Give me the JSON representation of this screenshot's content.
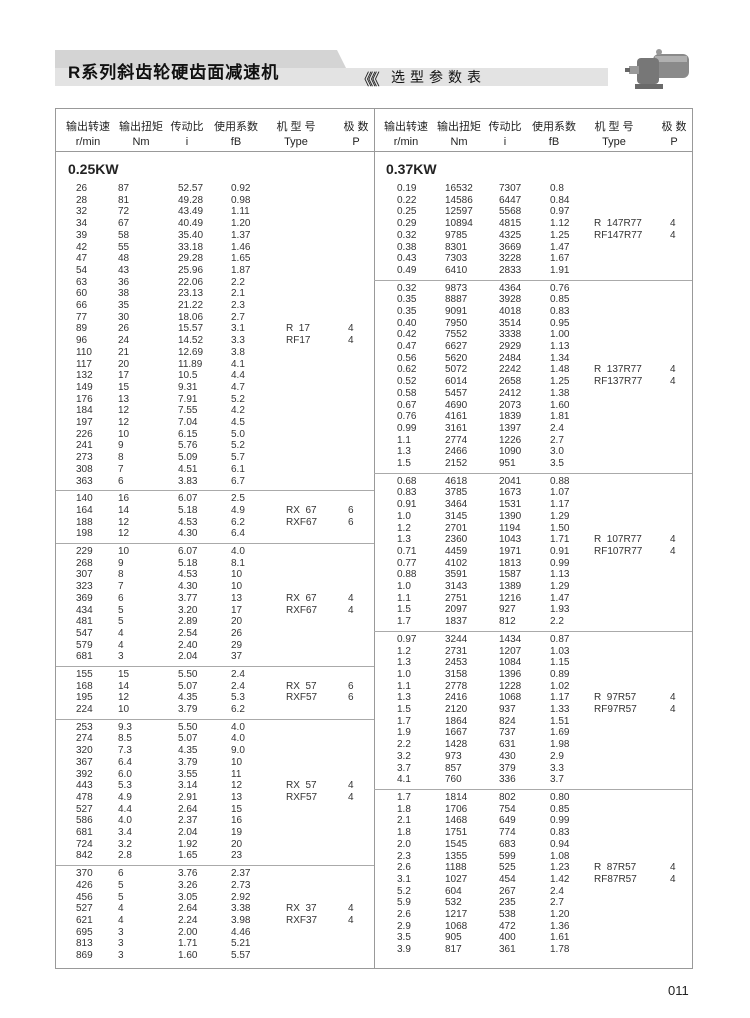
{
  "header": {
    "title": "R系列斜齿轮硬齿面减速机",
    "chevrons": "《《《",
    "subtitle": "选型参数表"
  },
  "columns": [
    {
      "zh": "输出转速",
      "en": "r/min"
    },
    {
      "zh": "输出扭矩",
      "en": "Nm"
    },
    {
      "zh": "传动比",
      "en": "i"
    },
    {
      "zh": "使用系数",
      "en": "fB"
    },
    {
      "zh": "机 型 号",
      "en": "Type"
    },
    {
      "zh": "极  数",
      "en": "P"
    }
  ],
  "sections": [
    {
      "power": "0.25KW",
      "groups": [
        {
          "types": [
            "R  17",
            "RF17"
          ],
          "poles": [
            "4",
            "4"
          ],
          "rows": [
            [
              "26",
              "87",
              "52.57",
              "0.92"
            ],
            [
              "28",
              "81",
              "49.28",
              "0.98"
            ],
            [
              "32",
              "72",
              "43.49",
              "1.11"
            ],
            [
              "34",
              "67",
              "40.49",
              "1.20"
            ],
            [
              "39",
              "58",
              "35.40",
              "1.37"
            ],
            [
              "42",
              "55",
              "33.18",
              "1.46"
            ],
            [
              "47",
              "48",
              "29.28",
              "1.65"
            ],
            [
              "54",
              "43",
              "25.96",
              "1.87"
            ],
            [
              "63",
              "36",
              "22.06",
              "2.2"
            ],
            [
              "60",
              "38",
              "23.13",
              "2.1"
            ],
            [
              "66",
              "35",
              "21.22",
              "2.3"
            ],
            [
              "77",
              "30",
              "18.06",
              "2.7"
            ],
            [
              "89",
              "26",
              "15.57",
              "3.1"
            ],
            [
              "96",
              "24",
              "14.52",
              "3.3"
            ],
            [
              "110",
              "21",
              "12.69",
              "3.8"
            ],
            [
              "117",
              "20",
              "11.89",
              "4.1"
            ],
            [
              "132",
              "17",
              "10.5",
              "4.4"
            ],
            [
              "149",
              "15",
              "9.31",
              "4.7"
            ],
            [
              "176",
              "13",
              "7.91",
              "5.2"
            ],
            [
              "184",
              "12",
              "7.55",
              "4.2"
            ],
            [
              "197",
              "12",
              "7.04",
              "4.5"
            ],
            [
              "226",
              "10",
              "6.15",
              "5.0"
            ],
            [
              "241",
              "9",
              "5.76",
              "5.2"
            ],
            [
              "273",
              "8",
              "5.09",
              "5.7"
            ],
            [
              "308",
              "7",
              "4.51",
              "6.1"
            ],
            [
              "363",
              "6",
              "3.83",
              "6.7"
            ]
          ]
        },
        {
          "types": [
            "RX  67",
            "RXF67"
          ],
          "poles": [
            "6",
            "6"
          ],
          "rows": [
            [
              "140",
              "16",
              "6.07",
              "2.5"
            ],
            [
              "164",
              "14",
              "5.18",
              "4.9"
            ],
            [
              "188",
              "12",
              "4.53",
              "6.2"
            ],
            [
              "198",
              "12",
              "4.30",
              "6.4"
            ]
          ]
        },
        {
          "types": [
            "RX  67",
            "RXF67"
          ],
          "poles": [
            "4",
            "4"
          ],
          "rows": [
            [
              "229",
              "10",
              "6.07",
              "4.0"
            ],
            [
              "268",
              "9",
              "5.18",
              "8.1"
            ],
            [
              "307",
              "8",
              "4.53",
              "10"
            ],
            [
              "323",
              "7",
              "4.30",
              "10"
            ],
            [
              "369",
              "6",
              "3.77",
              "13"
            ],
            [
              "434",
              "5",
              "3.20",
              "17"
            ],
            [
              "481",
              "5",
              "2.89",
              "20"
            ],
            [
              "547",
              "4",
              "2.54",
              "26"
            ],
            [
              "579",
              "4",
              "2.40",
              "29"
            ],
            [
              "681",
              "3",
              "2.04",
              "37"
            ]
          ]
        },
        {
          "types": [
            "RX  57",
            "RXF57"
          ],
          "poles": [
            "6",
            "6"
          ],
          "rows": [
            [
              "155",
              "15",
              "5.50",
              "2.4"
            ],
            [
              "168",
              "14",
              "5.07",
              "2.4"
            ],
            [
              "195",
              "12",
              "4.35",
              "5.3"
            ],
            [
              "224",
              "10",
              "3.79",
              "6.2"
            ]
          ]
        },
        {
          "types": [
            "RX  57",
            "RXF57"
          ],
          "poles": [
            "4",
            "4"
          ],
          "rows": [
            [
              "253",
              "9.3",
              "5.50",
              "4.0"
            ],
            [
              "274",
              "8.5",
              "5.07",
              "4.0"
            ],
            [
              "320",
              "7.3",
              "4.35",
              "9.0"
            ],
            [
              "367",
              "6.4",
              "3.79",
              "10"
            ],
            [
              "392",
              "6.0",
              "3.55",
              "11"
            ],
            [
              "443",
              "5.3",
              "3.14",
              "12"
            ],
            [
              "478",
              "4.9",
              "2.91",
              "13"
            ],
            [
              "527",
              "4.4",
              "2.64",
              "15"
            ],
            [
              "586",
              "4.0",
              "2.37",
              "16"
            ],
            [
              "681",
              "3.4",
              "2.04",
              "19"
            ],
            [
              "724",
              "3.2",
              "1.92",
              "20"
            ],
            [
              "842",
              "2.8",
              "1.65",
              "23"
            ]
          ]
        },
        {
          "types": [
            "RX  37",
            "RXF37"
          ],
          "poles": [
            "4",
            "4"
          ],
          "rows": [
            [
              "370",
              "6",
              "3.76",
              "2.37"
            ],
            [
              "426",
              "5",
              "3.26",
              "2.73"
            ],
            [
              "456",
              "5",
              "3.05",
              "2.92"
            ],
            [
              "527",
              "4",
              "2.64",
              "3.38"
            ],
            [
              "621",
              "4",
              "2.24",
              "3.98"
            ],
            [
              "695",
              "3",
              "2.00",
              "4.46"
            ],
            [
              "813",
              "3",
              "1.71",
              "5.21"
            ],
            [
              "869",
              "3",
              "1.60",
              "5.57"
            ]
          ]
        }
      ]
    },
    {
      "power": "0.37KW",
      "groups": [
        {
          "types": [
            "R  147R77",
            "RF147R77"
          ],
          "poles": [
            "4",
            "4"
          ],
          "rows": [
            [
              "0.19",
              "16532",
              "7307",
              "0.8"
            ],
            [
              "0.22",
              "14586",
              "6447",
              "0.84"
            ],
            [
              "0.25",
              "12597",
              "5568",
              "0.97"
            ],
            [
              "0.29",
              "10894",
              "4815",
              "1.12"
            ],
            [
              "0.32",
              "9785",
              "4325",
              "1.25"
            ],
            [
              "0.38",
              "8301",
              "3669",
              "1.47"
            ],
            [
              "0.43",
              "7303",
              "3228",
              "1.67"
            ],
            [
              "0.49",
              "6410",
              "2833",
              "1.91"
            ]
          ]
        },
        {
          "types": [
            "R  137R77",
            "RF137R77"
          ],
          "poles": [
            "4",
            "4"
          ],
          "rows": [
            [
              "0.32",
              "9873",
              "4364",
              "0.76"
            ],
            [
              "0.35",
              "8887",
              "3928",
              "0.85"
            ],
            [
              "0.35",
              "9091",
              "4018",
              "0.83"
            ],
            [
              "0.40",
              "7950",
              "3514",
              "0.95"
            ],
            [
              "0.42",
              "7552",
              "3338",
              "1.00"
            ],
            [
              "0.47",
              "6627",
              "2929",
              "1.13"
            ],
            [
              "0.56",
              "5620",
              "2484",
              "1.34"
            ],
            [
              "0.62",
              "5072",
              "2242",
              "1.48"
            ],
            [
              "0.52",
              "6014",
              "2658",
              "1.25"
            ],
            [
              "0.58",
              "5457",
              "2412",
              "1.38"
            ],
            [
              "0.67",
              "4690",
              "2073",
              "1.60"
            ],
            [
              "0.76",
              "4161",
              "1839",
              "1.81"
            ],
            [
              "0.99",
              "3161",
              "1397",
              "2.4"
            ],
            [
              "1.1",
              "2774",
              "1226",
              "2.7"
            ],
            [
              "1.3",
              "2466",
              "1090",
              "3.0"
            ],
            [
              "1.5",
              "2152",
              "951",
              "3.5"
            ]
          ]
        },
        {
          "types": [
            "R  107R77",
            "RF107R77"
          ],
          "poles": [
            "4",
            "4"
          ],
          "rows": [
            [
              "0.68",
              "4618",
              "2041",
              "0.88"
            ],
            [
              "0.83",
              "3785",
              "1673",
              "1.07"
            ],
            [
              "0.91",
              "3464",
              "1531",
              "1.17"
            ],
            [
              "1.0",
              "3145",
              "1390",
              "1.29"
            ],
            [
              "1.2",
              "2701",
              "1194",
              "1.50"
            ],
            [
              "1.3",
              "2360",
              "1043",
              "1.71"
            ],
            [
              "0.71",
              "4459",
              "1971",
              "0.91"
            ],
            [
              "0.77",
              "4102",
              "1813",
              "0.99"
            ],
            [
              "0.88",
              "3591",
              "1587",
              "1.13"
            ],
            [
              "1.0",
              "3143",
              "1389",
              "1.29"
            ],
            [
              "1.1",
              "2751",
              "1216",
              "1.47"
            ],
            [
              "1.5",
              "2097",
              "927",
              "1.93"
            ],
            [
              "1.7",
              "1837",
              "812",
              "2.2"
            ]
          ]
        },
        {
          "types": [
            "R  97R57",
            "RF97R57"
          ],
          "poles": [
            "4",
            "4"
          ],
          "rows": [
            [
              "0.97",
              "3244",
              "1434",
              "0.87"
            ],
            [
              "1.2",
              "2731",
              "1207",
              "1.03"
            ],
            [
              "1.3",
              "2453",
              "1084",
              "1.15"
            ],
            [
              "1.0",
              "3158",
              "1396",
              "0.89"
            ],
            [
              "1.1",
              "2778",
              "1228",
              "1.02"
            ],
            [
              "1.3",
              "2416",
              "1068",
              "1.17"
            ],
            [
              "1.5",
              "2120",
              "937",
              "1.33"
            ],
            [
              "1.7",
              "1864",
              "824",
              "1.51"
            ],
            [
              "1.9",
              "1667",
              "737",
              "1.69"
            ],
            [
              "2.2",
              "1428",
              "631",
              "1.98"
            ],
            [
              "3.2",
              "973",
              "430",
              "2.9"
            ],
            [
              "3.7",
              "857",
              "379",
              "3.3"
            ],
            [
              "4.1",
              "760",
              "336",
              "3.7"
            ]
          ]
        },
        {
          "types": [
            "R  87R57",
            "RF87R57"
          ],
          "poles": [
            "4",
            "4"
          ],
          "rows": [
            [
              "1.7",
              "1814",
              "802",
              "0.80"
            ],
            [
              "1.8",
              "1706",
              "754",
              "0.85"
            ],
            [
              "2.1",
              "1468",
              "649",
              "0.99"
            ],
            [
              "1.8",
              "1751",
              "774",
              "0.83"
            ],
            [
              "2.0",
              "1545",
              "683",
              "0.94"
            ],
            [
              "2.3",
              "1355",
              "599",
              "1.08"
            ],
            [
              "2.6",
              "1188",
              "525",
              "1.23"
            ],
            [
              "3.1",
              "1027",
              "454",
              "1.42"
            ],
            [
              "5.2",
              "604",
              "267",
              "2.4"
            ],
            [
              "5.9",
              "532",
              "235",
              "2.7"
            ],
            [
              "2.6",
              "1217",
              "538",
              "1.20"
            ],
            [
              "2.9",
              "1068",
              "472",
              "1.36"
            ],
            [
              "3.5",
              "905",
              "400",
              "1.61"
            ],
            [
              "3.9",
              "817",
              "361",
              "1.78"
            ]
          ]
        }
      ]
    }
  ],
  "page_number": "011",
  "colors": {
    "band_dark": "#d4d4d4",
    "band_light": "#e3e3e3",
    "rule": "#999999"
  }
}
